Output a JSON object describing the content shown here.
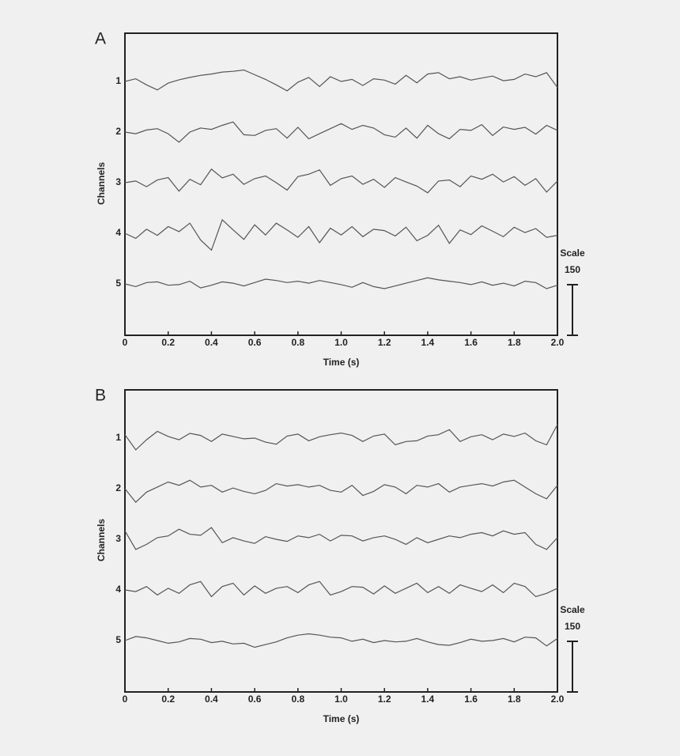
{
  "chart_data": [
    {
      "type": "line",
      "panel": "A",
      "xlabel": "Time (s)",
      "ylabel": "Channels",
      "x": [
        0,
        0.05,
        0.1,
        0.15,
        0.2,
        0.25,
        0.3,
        0.35,
        0.4,
        0.45,
        0.5,
        0.55,
        0.6,
        0.65,
        0.7,
        0.75,
        0.8,
        0.85,
        0.9,
        0.95,
        1,
        1.05,
        1.1,
        1.15,
        1.2,
        1.25,
        1.3,
        1.35,
        1.4,
        1.45,
        1.5,
        1.55,
        1.6,
        1.65,
        1.7,
        1.75,
        1.8,
        1.85,
        1.9,
        1.95,
        2
      ],
      "xlim": [
        0,
        2
      ],
      "xticks": [
        0,
        0.2,
        0.4,
        0.6,
        0.8,
        {
          "value": 1,
          "label": "1.0"
        },
        1.2,
        1.4,
        1.6,
        1.8,
        {
          "value": 2,
          "label": "2.0"
        }
      ],
      "scale": {
        "label": "Scale",
        "value": 150
      },
      "series": [
        {
          "name": "1",
          "color": "#555555",
          "values": [
            0,
            8,
            -10,
            -25,
            -5,
            5,
            12,
            18,
            22,
            28,
            30,
            34,
            20,
            6,
            -10,
            -28,
            -2,
            12,
            -15,
            14,
            0,
            6,
            -12,
            8,
            4,
            -8,
            18,
            -4,
            22,
            26,
            8,
            14,
            4,
            10,
            16,
            2,
            6,
            22,
            14,
            26,
            -18
          ]
        },
        {
          "name": "2",
          "color": "#555555",
          "values": [
            0,
            -5,
            6,
            10,
            -5,
            -30,
            0,
            12,
            8,
            20,
            30,
            -8,
            -10,
            5,
            10,
            -18,
            14,
            -20,
            -5,
            10,
            25,
            8,
            20,
            12,
            -8,
            -15,
            12,
            -18,
            20,
            -5,
            -20,
            8,
            5,
            22,
            -10,
            15,
            8,
            14,
            -6,
            20,
            5
          ]
        },
        {
          "name": "3",
          "color": "#555555",
          "values": [
            0,
            5,
            -12,
            8,
            15,
            -25,
            10,
            -6,
            40,
            14,
            25,
            -5,
            12,
            20,
            0,
            -22,
            18,
            25,
            38,
            -8,
            12,
            20,
            -5,
            10,
            -14,
            15,
            2,
            -10,
            -30,
            5,
            8,
            -12,
            20,
            10,
            25,
            2,
            18,
            -8,
            12,
            -28,
            5
          ]
        },
        {
          "name": "4",
          "color": "#555555",
          "values": [
            0,
            -15,
            12,
            -6,
            20,
            5,
            30,
            -20,
            -50,
            40,
            10,
            -18,
            25,
            -5,
            30,
            10,
            -12,
            20,
            -28,
            15,
            -5,
            20,
            -10,
            12,
            8,
            -8,
            18,
            -22,
            -6,
            24,
            -30,
            10,
            -4,
            22,
            6,
            -10,
            18,
            2,
            14,
            -12,
            -6
          ]
        },
        {
          "name": "5",
          "color": "#555555",
          "values": [
            0,
            -8,
            4,
            6,
            -4,
            -2,
            8,
            -12,
            -4,
            6,
            2,
            -6,
            4,
            14,
            10,
            4,
            8,
            2,
            10,
            4,
            -2,
            -10,
            4,
            -8,
            -14,
            -6,
            2,
            10,
            18,
            12,
            8,
            4,
            -2,
            6,
            -4,
            2,
            -6,
            8,
            4,
            -14,
            -4
          ]
        }
      ]
    },
    {
      "type": "line",
      "panel": "B",
      "xlabel": "Time (s)",
      "ylabel": "Channels",
      "x": [
        0,
        0.05,
        0.1,
        0.15,
        0.2,
        0.25,
        0.3,
        0.35,
        0.4,
        0.45,
        0.5,
        0.55,
        0.6,
        0.65,
        0.7,
        0.75,
        0.8,
        0.85,
        0.9,
        0.95,
        1,
        1.05,
        1.1,
        1.15,
        1.2,
        1.25,
        1.3,
        1.35,
        1.4,
        1.45,
        1.5,
        1.55,
        1.6,
        1.65,
        1.7,
        1.75,
        1.8,
        1.85,
        1.9,
        1.95,
        2
      ],
      "xlim": [
        0,
        2
      ],
      "xticks": [
        0,
        0.2,
        0.4,
        0.6,
        0.8,
        {
          "value": 1,
          "label": "1.0"
        },
        1.2,
        1.4,
        1.6,
        1.8,
        {
          "value": 2,
          "label": "2.0"
        }
      ],
      "scale": {
        "label": "Scale",
        "value": 150
      },
      "series": [
        {
          "name": "1",
          "color": "#555555",
          "values": [
            10,
            -35,
            -5,
            20,
            5,
            -5,
            14,
            8,
            -10,
            12,
            5,
            -2,
            0,
            -12,
            -18,
            6,
            12,
            -8,
            4,
            10,
            15,
            8,
            -10,
            6,
            12,
            -20,
            -10,
            -8,
            6,
            10,
            25,
            -10,
            4,
            10,
            -5,
            12,
            5,
            15,
            -8,
            -20,
            40
          ]
        },
        {
          "name": "2",
          "color": "#555555",
          "values": [
            0,
            -40,
            -10,
            5,
            20,
            10,
            25,
            5,
            10,
            -10,
            2,
            -8,
            -15,
            -5,
            15,
            8,
            12,
            5,
            10,
            -5,
            -10,
            10,
            -20,
            -8,
            12,
            5,
            -15,
            10,
            5,
            15,
            -10,
            5,
            10,
            15,
            8,
            20,
            25,
            5,
            -15,
            -30,
            10
          ]
        },
        {
          "name": "3",
          "color": "#555555",
          "values": [
            25,
            -30,
            -15,
            5,
            10,
            30,
            15,
            12,
            35,
            -10,
            5,
            -5,
            -12,
            8,
            0,
            -6,
            10,
            5,
            15,
            -5,
            12,
            10,
            -5,
            5,
            10,
            0,
            -15,
            5,
            -10,
            0,
            10,
            5,
            15,
            20,
            10,
            25,
            15,
            20,
            -15,
            -30,
            5
          ]
        },
        {
          "name": "4",
          "color": "#555555",
          "values": [
            0,
            -5,
            10,
            -15,
            5,
            -10,
            15,
            25,
            -20,
            10,
            20,
            -15,
            12,
            -10,
            5,
            10,
            -8,
            15,
            25,
            -15,
            -5,
            10,
            8,
            -12,
            12,
            -10,
            5,
            20,
            -8,
            10,
            -10,
            15,
            5,
            -5,
            15,
            -8,
            20,
            10,
            -20,
            -10,
            5
          ]
        },
        {
          "name": "5",
          "color": "#555555",
          "values": [
            0,
            12,
            8,
            0,
            -8,
            -4,
            6,
            4,
            -6,
            -2,
            -10,
            -8,
            -20,
            -12,
            -4,
            8,
            16,
            20,
            16,
            10,
            8,
            -2,
            4,
            -6,
            0,
            -4,
            -2,
            6,
            -4,
            -12,
            -14,
            -6,
            4,
            -2,
            0,
            6,
            -4,
            10,
            8,
            -16,
            6
          ]
        }
      ]
    }
  ]
}
